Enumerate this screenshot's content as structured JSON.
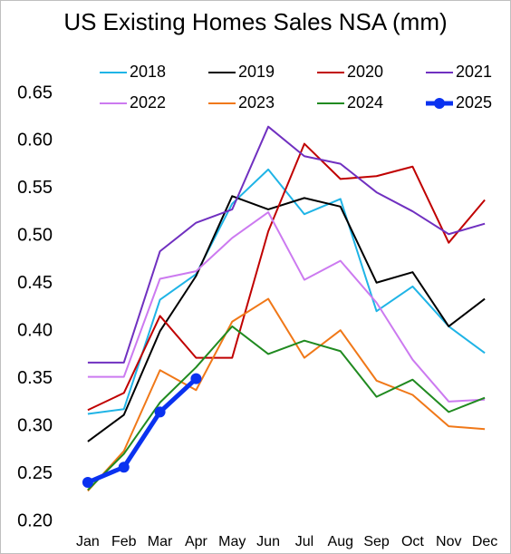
{
  "chart_data": {
    "type": "line",
    "title": "US Existing Homes Sales NSA (mm)",
    "categories": [
      "Jan",
      "Feb",
      "Mar",
      "Apr",
      "May",
      "Jun",
      "Jul",
      "Aug",
      "Sep",
      "Oct",
      "Nov",
      "Dec"
    ],
    "series": [
      {
        "name": "2018",
        "color": "#1fb4e6",
        "values": [
          0.313,
          0.318,
          0.433,
          0.46,
          0.534,
          0.57,
          0.523,
          0.539,
          0.421,
          0.447,
          0.405,
          0.377
        ]
      },
      {
        "name": "2019",
        "color": "#000000",
        "values": [
          0.284,
          0.312,
          0.4,
          0.458,
          0.542,
          0.528,
          0.54,
          0.531,
          0.451,
          0.462,
          0.405,
          0.434
        ]
      },
      {
        "name": "2020",
        "color": "#c00000",
        "values": [
          0.317,
          0.335,
          0.416,
          0.372,
          0.372,
          0.505,
          0.597,
          0.56,
          0.563,
          0.573,
          0.493,
          0.538
        ]
      },
      {
        "name": "2021",
        "color": "#7030c0",
        "values": [
          0.367,
          0.367,
          0.484,
          0.514,
          0.528,
          0.615,
          0.584,
          0.576,
          0.546,
          0.526,
          0.502,
          0.513
        ]
      },
      {
        "name": "2022",
        "color": "#cc7af0",
        "values": [
          0.352,
          0.352,
          0.455,
          0.463,
          0.498,
          0.525,
          0.454,
          0.474,
          0.43,
          0.37,
          0.326,
          0.328
        ]
      },
      {
        "name": "2023",
        "color": "#f07818",
        "values": [
          0.232,
          0.274,
          0.359,
          0.338,
          0.41,
          0.434,
          0.372,
          0.401,
          0.348,
          0.333,
          0.3,
          0.297
        ]
      },
      {
        "name": "2024",
        "color": "#208a20",
        "values": [
          0.233,
          0.271,
          0.325,
          0.362,
          0.405,
          0.376,
          0.39,
          0.379,
          0.331,
          0.349,
          0.315,
          0.33
        ]
      },
      {
        "name": "2025",
        "color": "#0a32f0",
        "markers": true,
        "values": [
          0.241,
          0.257,
          0.315,
          0.35,
          null,
          null,
          null,
          null,
          null,
          null,
          null,
          null
        ]
      }
    ],
    "ylim": [
      0.2,
      0.65
    ],
    "yticks": [
      {
        "value": 0.2,
        "label": "0.20"
      },
      {
        "value": 0.25,
        "label": "0.25"
      },
      {
        "value": 0.3,
        "label": "0.30"
      },
      {
        "value": 0.35,
        "label": "0.35"
      },
      {
        "value": 0.4,
        "label": "0.40"
      },
      {
        "value": 0.45,
        "label": "0.45"
      },
      {
        "value": 0.5,
        "label": "0.50"
      },
      {
        "value": 0.55,
        "label": "0.55"
      },
      {
        "value": 0.6,
        "label": "0.60"
      },
      {
        "value": 0.65,
        "label": "0.65"
      }
    ],
    "grid": false,
    "legend": "top"
  }
}
